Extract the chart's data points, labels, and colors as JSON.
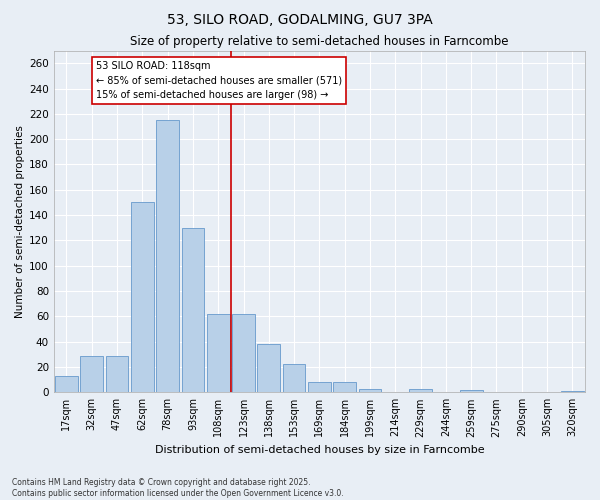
{
  "title": "53, SILO ROAD, GODALMING, GU7 3PA",
  "subtitle": "Size of property relative to semi-detached houses in Farncombe",
  "xlabel": "Distribution of semi-detached houses by size in Farncombe",
  "ylabel": "Number of semi-detached properties",
  "categories": [
    "17sqm",
    "32sqm",
    "47sqm",
    "62sqm",
    "78sqm",
    "93sqm",
    "108sqm",
    "123sqm",
    "138sqm",
    "153sqm",
    "169sqm",
    "184sqm",
    "199sqm",
    "214sqm",
    "229sqm",
    "244sqm",
    "259sqm",
    "275sqm",
    "290sqm",
    "305sqm",
    "320sqm"
  ],
  "values": [
    13,
    29,
    29,
    150,
    215,
    130,
    62,
    62,
    38,
    22,
    8,
    8,
    3,
    0,
    3,
    0,
    2,
    0,
    0,
    0,
    1
  ],
  "bar_color": "#b8d0e8",
  "bar_edge_color": "#6699cc",
  "background_color": "#e8eef5",
  "grid_color": "#ffffff",
  "vline_x_index": 7,
  "vline_color": "#cc0000",
  "annotation_title": "53 SILO ROAD: 118sqm",
  "annotation_line1": "← 85% of semi-detached houses are smaller (571)",
  "annotation_line2": "15% of semi-detached houses are larger (98) →",
  "annotation_box_color": "#ffffff",
  "annotation_box_edge": "#cc0000",
  "footer1": "Contains HM Land Registry data © Crown copyright and database right 2025.",
  "footer2": "Contains public sector information licensed under the Open Government Licence v3.0.",
  "ylim": [
    0,
    270
  ],
  "yticks": [
    0,
    20,
    40,
    60,
    80,
    100,
    120,
    140,
    160,
    180,
    200,
    220,
    240,
    260
  ]
}
